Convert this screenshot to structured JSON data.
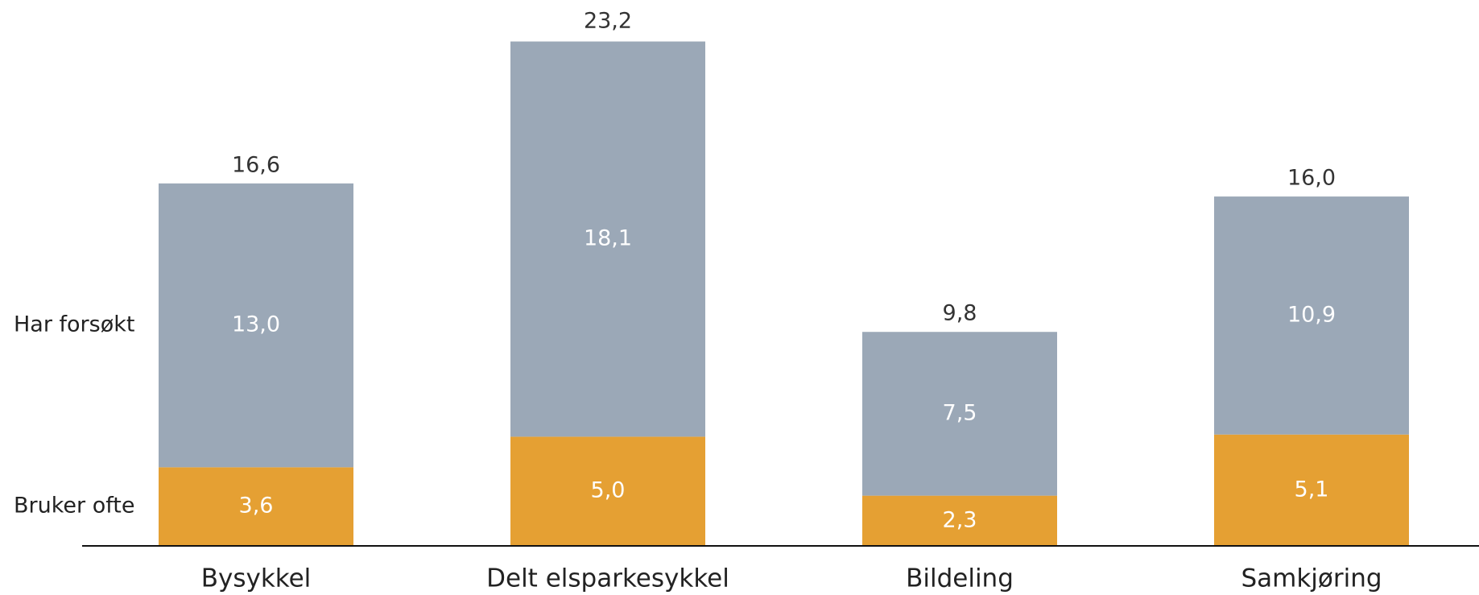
{
  "chart_data": {
    "type": "stacked_bar",
    "categories": [
      "Bysykkel",
      "Delt elsparkesykkel",
      "Bildeling",
      "Samkjøring"
    ],
    "series": [
      {
        "name": "Bruker ofte",
        "color": "#e5a033",
        "values": [
          3.6,
          5.0,
          2.3,
          5.1
        ],
        "value_labels": [
          "3,6",
          "5,0",
          "2,3",
          "5,1"
        ]
      },
      {
        "name": "Har forsøkt",
        "color": "#9ba8b7",
        "values": [
          13.0,
          18.1,
          7.5,
          10.9
        ],
        "value_labels": [
          "13,0",
          "18,1",
          "7,5",
          "10,9"
        ]
      }
    ],
    "totals": [
      16.6,
      23.2,
      9.8,
      16.0
    ],
    "total_labels": [
      "16,6",
      "23,2",
      "9,8",
      "16,0"
    ],
    "ylim": [
      0,
      25
    ]
  }
}
